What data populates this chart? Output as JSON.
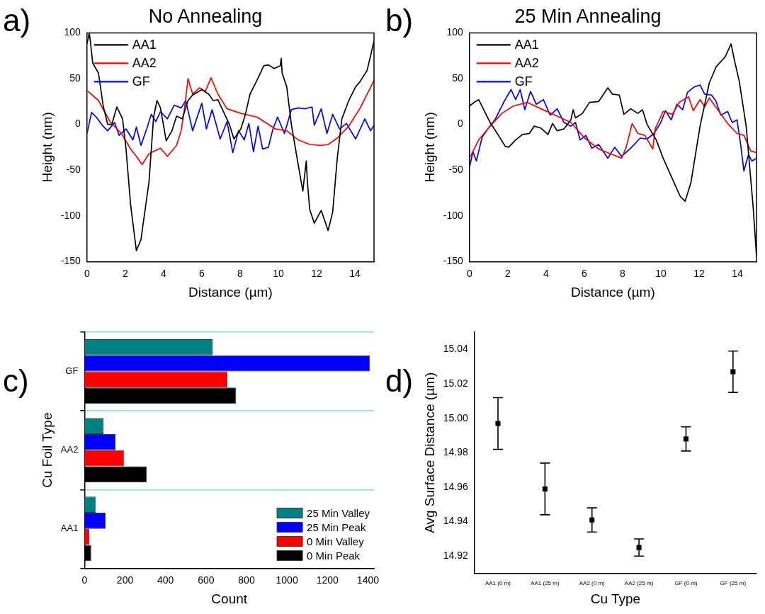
{
  "chart_data": [
    {
      "type": "line",
      "title": "No Annealing",
      "xlabel": "Distance (µm)",
      "ylabel": "Height (nm)",
      "annotations": [
        "a)"
      ],
      "xlim": [
        0,
        15
      ],
      "xticks": [
        0,
        2,
        4,
        6,
        8,
        10,
        12,
        14
      ],
      "ylim": [
        -150,
        100
      ],
      "yticks": [
        -150,
        -100,
        -50,
        0,
        50,
        100
      ],
      "legend": "top left",
      "series": [
        {
          "name": "AA1",
          "color": "#000000",
          "x": [
            0,
            0.12,
            0.18,
            0.3,
            0.6,
            0.84,
            1.08,
            1.3,
            1.56,
            1.86,
            2.04,
            2.28,
            2.58,
            2.82,
            3.24,
            3.48,
            3.66,
            3.84,
            4.14,
            4.44,
            4.68,
            4.98,
            5.28,
            5.52,
            6.0,
            6.36,
            6.6,
            6.84,
            7.44,
            7.68,
            8.04,
            8.28,
            8.52,
            8.88,
            9.24,
            9.48,
            9.78,
            10.1,
            10.15,
            10.2,
            10.44,
            10.68,
            10.98,
            11.28,
            11.46,
            11.52,
            11.64,
            11.88,
            12.24,
            12.6,
            12.84,
            13.08,
            13.32,
            13.68,
            14.04,
            14.28,
            14.64,
            15
          ],
          "values": [
            88,
            100,
            90,
            67,
            56,
            21,
            0,
            0,
            19,
            6,
            -27,
            -88,
            -138,
            -126,
            -63,
            8,
            26,
            18,
            -18,
            -7,
            9,
            6,
            26,
            32,
            38,
            33,
            26,
            27,
            0,
            -16,
            -5,
            11,
            33,
            48,
            64,
            65,
            61,
            64,
            72,
            56,
            41,
            0,
            -37,
            -73,
            -40,
            -63,
            -93,
            -108,
            -94,
            -116,
            -96,
            -37,
            6,
            26,
            41,
            47,
            59,
            91
          ]
        },
        {
          "name": "AA2",
          "color": "#ff0000",
          "x": [
            0,
            0.6,
            1.2,
            1.8,
            2.28,
            2.58,
            2.88,
            3.24,
            3.84,
            4.2,
            4.68,
            4.92,
            5.1,
            5.28,
            5.52,
            5.88,
            6.18,
            6.48,
            6.84,
            7.32,
            8.04,
            8.88,
            9.84,
            10.44,
            11.04,
            11.64,
            12.24,
            12.6,
            13.08,
            13.68,
            14.28,
            15
          ],
          "values": [
            37,
            26,
            3,
            -10,
            -27,
            -35,
            -44,
            -32,
            -26,
            -35,
            -23,
            -7,
            18,
            50,
            33,
            40,
            36,
            51,
            33,
            17,
            12,
            8,
            -5,
            -7,
            -17,
            -22,
            -23,
            -22,
            -15,
            -2,
            18,
            48
          ]
        },
        {
          "name": "GF",
          "color": "#0000ff",
          "x": [
            0,
            0.24,
            0.48,
            0.84,
            1.08,
            1.44,
            1.68,
            2.04,
            2.4,
            2.58,
            2.82,
            3.12,
            3.36,
            3.6,
            3.84,
            4.2,
            4.56,
            4.92,
            5.16,
            5.52,
            6.0,
            6.24,
            6.54,
            6.96,
            7.32,
            7.62,
            7.92,
            8.22,
            8.46,
            8.7,
            8.94,
            9.18,
            9.48,
            9.72,
            9.96,
            10.32,
            10.68,
            11.04,
            11.4,
            11.76,
            11.88,
            12.24,
            12.54,
            12.84,
            13.2,
            13.56,
            14.04,
            14.52,
            14.82,
            15
          ],
          "values": [
            -10,
            13,
            8,
            -2,
            -7,
            2,
            -12,
            -5,
            -17,
            -3,
            -23,
            -5,
            11,
            3,
            14,
            6,
            21,
            18,
            26,
            -7,
            23,
            -5,
            16,
            -16,
            3,
            -31,
            -7,
            -17,
            1,
            -30,
            -2,
            -27,
            -25,
            -5,
            8,
            -10,
            16,
            18,
            17,
            19,
            -1,
            17,
            -10,
            11,
            -5,
            1,
            -16,
            6,
            -7,
            -1
          ]
        }
      ]
    },
    {
      "type": "line",
      "title": "25 Min Annealing",
      "xlabel": "Distance (µm)",
      "ylabel": "Height (nm)",
      "annotations": [
        "b)"
      ],
      "xlim": [
        0,
        15
      ],
      "xticks": [
        0,
        2,
        4,
        6,
        8,
        10,
        12,
        14
      ],
      "ylim": [
        -150,
        100
      ],
      "yticks": [
        -150,
        -100,
        -50,
        0,
        50,
        100
      ],
      "legend": "top left",
      "series": [
        {
          "name": "AA1",
          "color": "#000000",
          "x": [
            0,
            0.24,
            0.48,
            0.72,
            1.08,
            1.45,
            1.87,
            2.05,
            2.41,
            2.77,
            3.13,
            3.37,
            3.73,
            4.1,
            4.34,
            4.58,
            4.94,
            5.3,
            5.42,
            5.54,
            5.9,
            6.27,
            6.75,
            7.23,
            7.47,
            7.83,
            8.07,
            8.43,
            8.8,
            9.04,
            9.28,
            9.76,
            10.12,
            10.72,
            11.02,
            11.27,
            11.57,
            12.05,
            12.53,
            12.89,
            13.37,
            13.67,
            13.86,
            14.1,
            14.46,
            14.82,
            15
          ],
          "values": [
            20,
            24,
            27,
            17,
            2,
            -10,
            -24,
            -25,
            -17,
            -11,
            -10,
            -2,
            -4,
            -11,
            1,
            -7,
            -5,
            5,
            16,
            7,
            12,
            24,
            25,
            40,
            33,
            32,
            11,
            17,
            12,
            16,
            0,
            -17,
            -37,
            -65,
            -79,
            -84,
            -64,
            -2,
            45,
            63,
            74,
            88,
            69,
            47,
            -2,
            -89,
            -144
          ]
        },
        {
          "name": "AA2",
          "color": "#ff0000",
          "x": [
            0,
            0.48,
            1.08,
            1.69,
            2.29,
            3.01,
            3.73,
            4.58,
            5.3,
            6.02,
            6.75,
            7.35,
            7.95,
            8.19,
            8.5,
            8.8,
            9.16,
            9.58,
            9.7,
            10.12,
            10.6,
            10.96,
            11.45,
            11.69,
            12.05,
            12.29,
            12.53,
            13.01,
            13.49,
            13.98,
            14.34,
            14.7,
            15
          ],
          "values": [
            -37,
            -17,
            -2,
            12,
            20,
            24,
            17,
            9,
            2,
            -15,
            -27,
            -32,
            -37,
            -25,
            1,
            -10,
            -12,
            -27,
            -5,
            14,
            11,
            24,
            30,
            15,
            27,
            19,
            29,
            15,
            1,
            -10,
            -12,
            -29,
            -31
          ]
        },
        {
          "name": "GF",
          "color": "#0000ff",
          "x": [
            0,
            0.18,
            0.36,
            0.66,
            0.96,
            1.33,
            1.57,
            1.81,
            2.17,
            2.41,
            2.65,
            2.89,
            3.19,
            3.49,
            3.86,
            4.22,
            4.58,
            4.94,
            5.3,
            5.54,
            5.78,
            6.08,
            6.39,
            6.75,
            7.23,
            7.59,
            7.95,
            8.43,
            8.92,
            9.28,
            9.64,
            10.0,
            10.24,
            10.54,
            10.84,
            11.14,
            11.39,
            11.75,
            12.05,
            12.29,
            12.65,
            12.89,
            13.13,
            13.49,
            13.73,
            13.98,
            14.16,
            14.34,
            14.58,
            14.76,
            15
          ],
          "values": [
            -47,
            -30,
            -40,
            -14,
            -5,
            5,
            15,
            25,
            38,
            27,
            38,
            16,
            36,
            22,
            27,
            10,
            17,
            2,
            -2,
            2,
            -17,
            -12,
            -26,
            -22,
            -37,
            -25,
            -35,
            -26,
            -15,
            -16,
            -10,
            2,
            15,
            5,
            22,
            16,
            35,
            41,
            43,
            33,
            32,
            25,
            10,
            14,
            2,
            5,
            -20,
            -51,
            -33,
            -40,
            -37
          ]
        }
      ]
    },
    {
      "type": "bar",
      "orientation": "horizontal",
      "xlabel": "Count",
      "ylabel": "Cu Foil Type",
      "annotations": [
        "c)"
      ],
      "categories": [
        "GF",
        "AA2",
        "AA1"
      ],
      "xlim": [
        0,
        1430
      ],
      "xticks": [
        0,
        200,
        400,
        600,
        800,
        1000,
        1200,
        1400
      ],
      "grid": "y",
      "legend": "bottom right",
      "series": [
        {
          "name": "25 Min Valley",
          "color": "#008080",
          "values": [
            632,
            93,
            56
          ]
        },
        {
          "name": "25 Min Peak",
          "color": "#0000ff",
          "values": [
            1410,
            154,
            105
          ]
        },
        {
          "name": "0 Min Valley",
          "color": "#ff0000",
          "values": [
            706,
            196,
            23
          ]
        },
        {
          "name": "0 Min Peak",
          "color": "#000000",
          "values": [
            749,
            307,
            33
          ]
        }
      ]
    },
    {
      "type": "scatter",
      "xlabel": "Cu Type",
      "ylabel": "Avg Surface Distance (µm)",
      "annotations": [
        "d)"
      ],
      "categories": [
        "AA1 (0 m)",
        "AA1 (25 m)",
        "AA2 (0 m)",
        "AA2 (25 m)",
        "GF (0 m)",
        "GF (25 m)"
      ],
      "values": [
        14.997,
        14.959,
        14.941,
        14.925,
        14.988,
        15.027
      ],
      "errors": [
        0.015,
        0.015,
        0.007,
        0.005,
        0.007,
        0.012
      ],
      "color": "#000000",
      "marker": "square",
      "ylim": [
        14.91,
        15.05
      ],
      "yticks": [
        14.92,
        14.94,
        14.96,
        14.98,
        {
          "value": 15,
          "label": "15.00"
        },
        15.02,
        15.04
      ]
    }
  ]
}
